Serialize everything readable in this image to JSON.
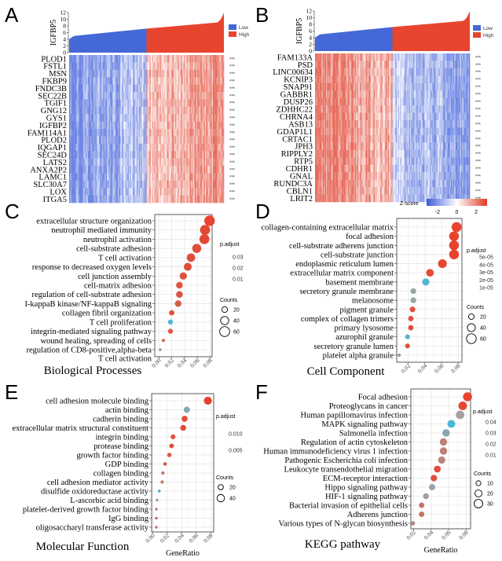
{
  "panel_labels": {
    "A": "A",
    "B": "B",
    "C": "C",
    "D": "D",
    "E": "E",
    "F": "F"
  },
  "colors": {
    "low": "#4468D6",
    "high": "#E8452F",
    "p_low": "#E8432E",
    "p_mid": "#A3A3A3",
    "p_high": "#4DB6D6",
    "heat_neg": "#3A5BD9",
    "heat_pos": "#E03A25"
  },
  "chart_data": [
    {
      "id": "A",
      "type": "heatmap",
      "ylabel": "IGFBP5",
      "yticks": [
        0,
        2,
        4,
        6,
        8,
        10,
        12
      ],
      "ylim": [
        0,
        12
      ],
      "legend": [
        "Low",
        "High"
      ],
      "groups_pattern": "Low group blue, High group red; high group genes up",
      "direction": "up-in-high",
      "rows": [
        "PLOD1",
        "FSTL1",
        "MSN",
        "FKBP9",
        "FNDC3B",
        "SEC22B",
        "TGIF1",
        "GNG12",
        "GYS1",
        "IGFBP2",
        "FAM114A1",
        "PLOD2",
        "IQGAP1",
        "SEC24D",
        "LATS2",
        "ANXA2P2",
        "LAMC1",
        "SLC30A7",
        "LOX",
        "ITGA5"
      ],
      "significance": "***"
    },
    {
      "id": "B",
      "type": "heatmap",
      "ylabel": "IGFBP5",
      "yticks": [
        0,
        2,
        4,
        6,
        8,
        10,
        12
      ],
      "ylim": [
        0,
        12
      ],
      "legend": [
        "Low",
        "High"
      ],
      "direction": "down-in-high",
      "rows": [
        "FAM133A",
        "PSD",
        "LINC00634",
        "KCNIP3",
        "SNAP91",
        "GABBR1",
        "DUSP26",
        "ZDHHC22",
        "CHRNA4",
        "ASB13",
        "GDAP1L1",
        "CRTAC1",
        "JPH3",
        "RIPPLY2",
        "RTP5",
        "CDHR1",
        "GNAL",
        "RUNDC3A",
        "CBLN1",
        "LRIT2"
      ],
      "significance": "***",
      "zscore": {
        "label": "Z-score",
        "ticks": [
          "-2",
          "0",
          "2"
        ]
      }
    },
    {
      "id": "C",
      "type": "scatter",
      "title": "Biological Processes",
      "xlabel": "",
      "xticks": [
        "0.00",
        "0.02",
        "0.04",
        "0.06",
        "0.08"
      ],
      "xtick_values": [
        0,
        0.02,
        0.04,
        0.06,
        0.08
      ],
      "xlim": [
        -0.0065,
        0.083
      ],
      "color_legend": {
        "title": "p.adjust",
        "ticks": [
          "0.03",
          "0.02",
          "0.01"
        ],
        "range": [
          0.001,
          0.037
        ]
      },
      "size_legend": {
        "title": "Counts",
        "values": [
          20,
          40,
          60
        ]
      },
      "terms": [
        "extracellular structure organization",
        "neutrophil mediated immunity",
        "neutrophil activation",
        "cell-substrate adhesion",
        "T cell activation",
        "response to decreased oxygen levels",
        "cell junction assembly",
        "cell-matrix adhesion",
        "regulation of cell-substrate adhesion",
        "I-kappaB kinase/NF-kappaB signaling",
        "collagen fibril organization",
        "T cell proliferation",
        "integrin-mediated signaling pathway",
        "wound healing, spreading of cells",
        "regulation of CD8-positive,alpha-beta|T cell activation"
      ],
      "gene_ratio": [
        0.079,
        0.072,
        0.071,
        0.059,
        0.05,
        0.045,
        0.038,
        0.032,
        0.032,
        0.03,
        0.02,
        0.018,
        0.018,
        0.007,
        0.002
      ],
      "counts": [
        67,
        61,
        60,
        50,
        43,
        38,
        32,
        27,
        27,
        26,
        17,
        15,
        15,
        6,
        3
      ],
      "p_adjust": [
        0.001,
        0.002,
        0.002,
        0.003,
        0.003,
        0.003,
        0.004,
        0.004,
        0.004,
        0.006,
        0.004,
        0.036,
        0.005,
        0.008,
        0.016
      ]
    },
    {
      "id": "D",
      "type": "scatter",
      "title": "Cell Component",
      "xlabel": "",
      "xticks": [
        "0.02",
        "0.04",
        "0.06",
        "0.08"
      ],
      "xtick_values": [
        0.02,
        0.04,
        0.06,
        0.08
      ],
      "xlim": [
        0.006,
        0.0845
      ],
      "color_legend": {
        "title": "p.adjust",
        "ticks": [
          "5e-05",
          "4e-05",
          "3e-05",
          "2e-05",
          "1e-05"
        ],
        "range": [
          1e-06,
          5.2e-05
        ]
      },
      "size_legend": {
        "title": "Counts",
        "values": [
          20,
          40,
          60
        ]
      },
      "terms": [
        "collagen-containing extracellular matrix",
        "focal adhesion",
        "cell-substrate adherens junction",
        "cell-substrate junction",
        "endoplasmic reticulum lumen",
        "extracellular matrix component",
        "basement membrane",
        "secretory granule membrane",
        "melanosome",
        "pigment granule",
        "complex of collagen trimers",
        "primary lysosome",
        "azurophil granule",
        "secretory granule lumen",
        "platelet alpha granule"
      ],
      "gene_ratio": [
        0.078,
        0.075,
        0.075,
        0.075,
        0.061,
        0.046,
        0.041,
        0.026,
        0.026,
        0.025,
        0.023,
        0.023,
        0.019,
        0.019,
        0.009
      ],
      "counts": [
        62,
        60,
        60,
        60,
        49,
        37,
        33,
        21,
        21,
        20,
        18,
        18,
        15,
        15,
        7
      ],
      "p_adjust": [
        1e-06,
        1e-06,
        1e-06,
        1e-06,
        2e-06,
        3e-06,
        5e-05,
        3e-05,
        3e-05,
        4e-06,
        4e-06,
        5e-06,
        4.9e-05,
        5e-06,
        2.2e-05
      ]
    },
    {
      "id": "E",
      "type": "scatter",
      "title": "Molecular Function",
      "xlabel": "GeneRatio",
      "xticks": [
        "0.00",
        "0.02",
        "0.04",
        "0.06",
        "0.08"
      ],
      "xtick_values": [
        0,
        0.02,
        0.04,
        0.06,
        0.08
      ],
      "xlim": [
        -0.0015,
        0.084
      ],
      "color_legend": {
        "title": "p.adjust",
        "ticks": [
          "0.010",
          "0.005"
        ],
        "range": [
          0.0005,
          0.0135
        ]
      },
      "size_legend": {
        "title": "Counts",
        "values": [
          20,
          40
        ]
      },
      "terms": [
        "cell adhesion molecule binding",
        "actin binding",
        "cadherin binding",
        "extracellular matrix structural constituent",
        "integrin binding",
        "protease binding",
        "growth factor binding",
        "GDP binding",
        "collagen binding",
        "cell adhesion mediator activity",
        "disulfide oxidoreductase activity",
        "L-ascorbic acid binding",
        "platelet-derived growth factor binding",
        "IgG binding",
        "oligosaccharyl transferase activity"
      ],
      "gene_ratio": [
        0.076,
        0.047,
        0.044,
        0.042,
        0.028,
        0.026,
        0.023,
        0.017,
        0.014,
        0.013,
        0.009,
        0.006,
        0.005,
        0.005,
        0.005
      ],
      "counts": [
        46,
        28,
        26,
        25,
        17,
        16,
        14,
        10,
        8,
        8,
        6,
        4,
        3,
        3,
        3
      ],
      "p_adjust": [
        0.0006,
        0.0095,
        0.001,
        0.001,
        0.0015,
        0.0015,
        0.002,
        0.0025,
        0.004,
        0.004,
        0.0132,
        0.006,
        0.005,
        0.004,
        0.004
      ]
    },
    {
      "id": "F",
      "type": "scatter",
      "title": "KEGG  pathway",
      "xlabel": "GeneRatio",
      "xticks": [
        "0.02",
        "0.04",
        "0.06",
        "0.08"
      ],
      "xtick_values": [
        0.02,
        0.04,
        0.06,
        0.08
      ],
      "xlim": [
        0.0167,
        0.085
      ],
      "color_legend": {
        "title": "p.adjust",
        "ticks": [
          "0.04",
          "0.03",
          "0.02",
          "0.01"
        ],
        "range": [
          0.001,
          0.045
        ]
      },
      "size_legend": {
        "title": "Counts",
        "values": [
          10,
          20,
          30
        ]
      },
      "terms": [
        "Focal adhesion",
        "Proteoglycans in cancer",
        "Human papillomavirus infection",
        "MAPK signaling pathway",
        "Salmonella infection",
        "Regulation of actin cytoskeleton",
        "Human immunodeficiency virus 1 infection",
        "Pathogenic Escherichia coli infection",
        "Leukocyte transendothelial migration",
        "ECM-receptor interaction",
        "Hippo signaling pathway",
        "HIF-1 signaling pathway",
        "Bacterial invasion of epithelial cells",
        "Adherens junction",
        "Various types of N-glycan biosynthesis"
      ],
      "gene_ratio": [
        0.0815,
        0.076,
        0.073,
        0.063,
        0.057,
        0.054,
        0.054,
        0.052,
        0.047,
        0.043,
        0.041,
        0.034,
        0.029,
        0.029,
        0.019
      ],
      "counts": [
        33,
        30,
        29,
        25,
        23,
        22,
        22,
        21,
        19,
        17,
        16,
        14,
        12,
        12,
        8
      ],
      "p_adjust": [
        0.001,
        0.002,
        0.022,
        0.045,
        0.03,
        0.015,
        0.015,
        0.016,
        0.004,
        0.004,
        0.028,
        0.022,
        0.012,
        0.012,
        0.018
      ]
    }
  ]
}
